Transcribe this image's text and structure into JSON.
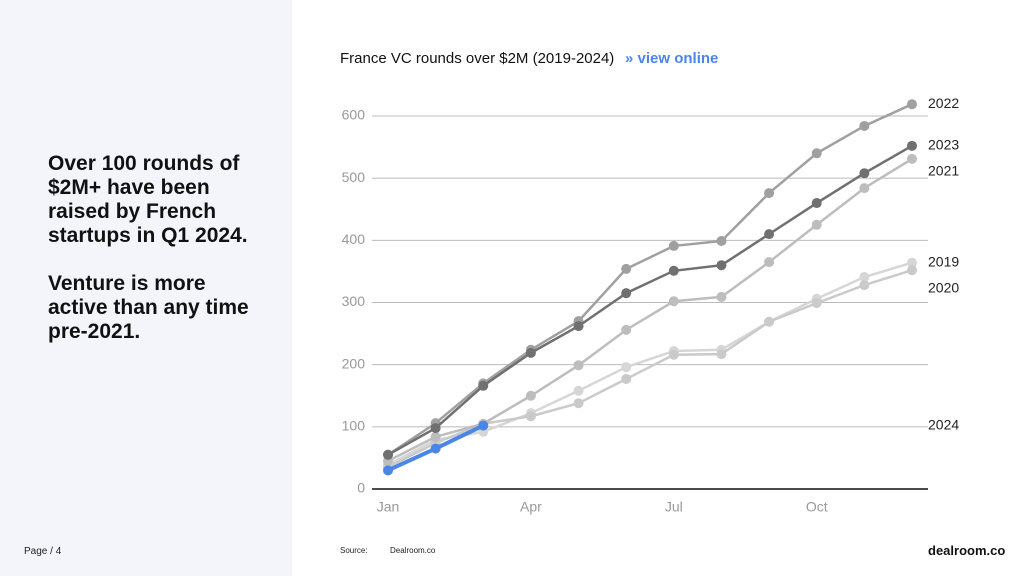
{
  "slide": {
    "headline": [
      "Over 100 rounds of $2M+ have been raised by French startups in Q1 2024.",
      "Venture is more active than any time pre-2021."
    ],
    "page": "Page / 4",
    "source_label": "Source:",
    "source": "Dealroom.co",
    "logo": "dealroom.co",
    "link": "» view online"
  },
  "chart_data": {
    "type": "line",
    "title": "France VC rounds over $2M (2019-2024)",
    "categories": [
      "Jan",
      null,
      null,
      "Apr",
      null,
      null,
      "Jul",
      null,
      null,
      "Oct",
      null,
      null
    ],
    "ylim": [
      0,
      600
    ],
    "yticks": [
      0,
      100,
      200,
      300,
      400,
      500,
      600
    ],
    "grid": true,
    "series": [
      {
        "name": "2019",
        "color": "#d6d6d6",
        "values": [
          39,
          79,
          92,
          122,
          158,
          196,
          222,
          224,
          269,
          306,
          341,
          364
        ]
      },
      {
        "name": "2020",
        "color": "#cacaca",
        "values": [
          35,
          74,
          105,
          117,
          138,
          177,
          216,
          217,
          269,
          299,
          328,
          352
        ]
      },
      {
        "name": "2021",
        "color": "#bdbdbd",
        "values": [
          45,
          84,
          105,
          150,
          199,
          256,
          302,
          309,
          365,
          425,
          484,
          531
        ]
      },
      {
        "name": "2022",
        "color": "#a0a0a0",
        "values": [
          55,
          106,
          170,
          224,
          270,
          354,
          391,
          399,
          476,
          540,
          584,
          619
        ]
      },
      {
        "name": "2023",
        "color": "#707070",
        "values": [
          55,
          98,
          166,
          219,
          262,
          315,
          351,
          360,
          410,
          460,
          508,
          552
        ]
      },
      {
        "name": "2024",
        "color": "#4a86e8",
        "values": [
          30,
          65,
          102,
          null,
          null,
          null,
          null,
          null,
          null,
          null,
          null,
          null
        ]
      }
    ]
  }
}
